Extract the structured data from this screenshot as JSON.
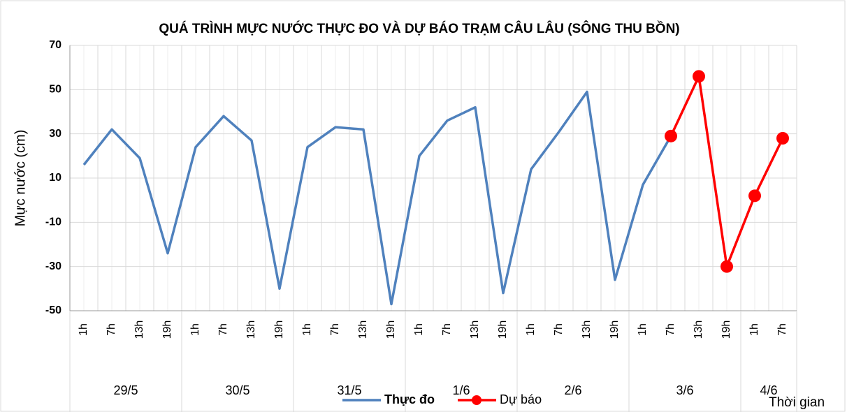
{
  "chart_data": {
    "type": "line",
    "title": "QUÁ TRÌNH MỰC NƯỚC THỰC ĐO VÀ DỰ BÁO TRẠM CÂU LÂU (SÔNG THU BỒN)",
    "y_label": "Mực nước (cm)",
    "x_label": "Thời gian",
    "categories": [
      "1h",
      "7h",
      "13h",
      "19h",
      "1h",
      "7h",
      "13h",
      "19h",
      "1h",
      "7h",
      "13h",
      "19h",
      "1h",
      "7h",
      "13h",
      "19h",
      "1h",
      "7h",
      "13h",
      "19h",
      "1h",
      "7h",
      "13h",
      "19h",
      "1h",
      "7h"
    ],
    "group_labels": [
      "29/5",
      "30/5",
      "31/5",
      "1/6",
      "2/6",
      "3/6",
      "4/6"
    ],
    "group_sizes": [
      4,
      4,
      4,
      4,
      4,
      4,
      2
    ],
    "series": [
      {
        "name": "Thực đo",
        "color": "#4f81bd",
        "markers": false,
        "values": [
          16,
          32,
          19,
          -24,
          24,
          38,
          27,
          -40,
          24,
          33,
          32,
          -47,
          20,
          36,
          42,
          -42,
          14,
          31,
          49,
          -36,
          7,
          29,
          null,
          null,
          null,
          null
        ]
      },
      {
        "name": "Dự báo",
        "color": "#ff0000",
        "markers": true,
        "values": [
          null,
          null,
          null,
          null,
          null,
          null,
          null,
          null,
          null,
          null,
          null,
          null,
          null,
          null,
          null,
          null,
          null,
          null,
          null,
          null,
          null,
          29,
          56,
          -30,
          2,
          28
        ]
      }
    ],
    "ylim": [
      -50,
      70
    ],
    "yticks": [
      -50,
      -30,
      -10,
      10,
      30,
      50,
      70
    ],
    "grid": true
  }
}
